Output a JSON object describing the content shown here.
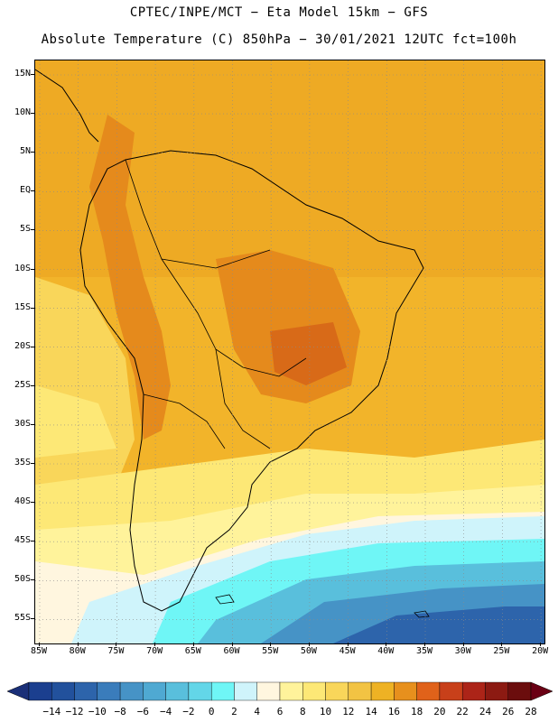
{
  "header": {
    "line1": "CPTEC/INPE/MCT −  Eta Model 15km − GFS",
    "line2": "Absolute Temperature (C) 850hPa − 30/01/2021 12UTC fct=100h"
  },
  "map": {
    "lat_labels": [
      "15N",
      "10N",
      "5N",
      "EQ",
      "5S",
      "10S",
      "15S",
      "20S",
      "25S",
      "30S",
      "35S",
      "40S",
      "45S",
      "50S",
      "55S"
    ],
    "lon_labels": [
      "85W",
      "80W",
      "75W",
      "70W",
      "65W",
      "60W",
      "55W",
      "50W",
      "45W",
      "40W",
      "35W",
      "30W",
      "25W",
      "20W"
    ],
    "gridlines": "dotted",
    "coastlines": "black"
  },
  "colorbar": {
    "labels": [
      "-14",
      "-12",
      "-10",
      "-8",
      "-6",
      "-4",
      "-2",
      "0",
      "2",
      "4",
      "6",
      "8",
      "10",
      "12",
      "14",
      "16",
      "18",
      "20",
      "22",
      "24",
      "26",
      "28"
    ],
    "colors": [
      "#1b3f8f",
      "#22519c",
      "#2d64ab",
      "#3a7cbb",
      "#4693c6",
      "#4fa9d2",
      "#59bfdc",
      "#63d6e8",
      "#6ff6f6",
      "#cff4fb",
      "#fff6df",
      "#fff39b",
      "#fde876",
      "#f9d65a",
      "#f2c343",
      "#eeb224",
      "#e7901d",
      "#e0621a",
      "#c8401a",
      "#ac2418",
      "#8c1a12",
      "#6b0d0d"
    ],
    "under_color": "#1a2f78",
    "over_color": "#6a0014"
  }
}
